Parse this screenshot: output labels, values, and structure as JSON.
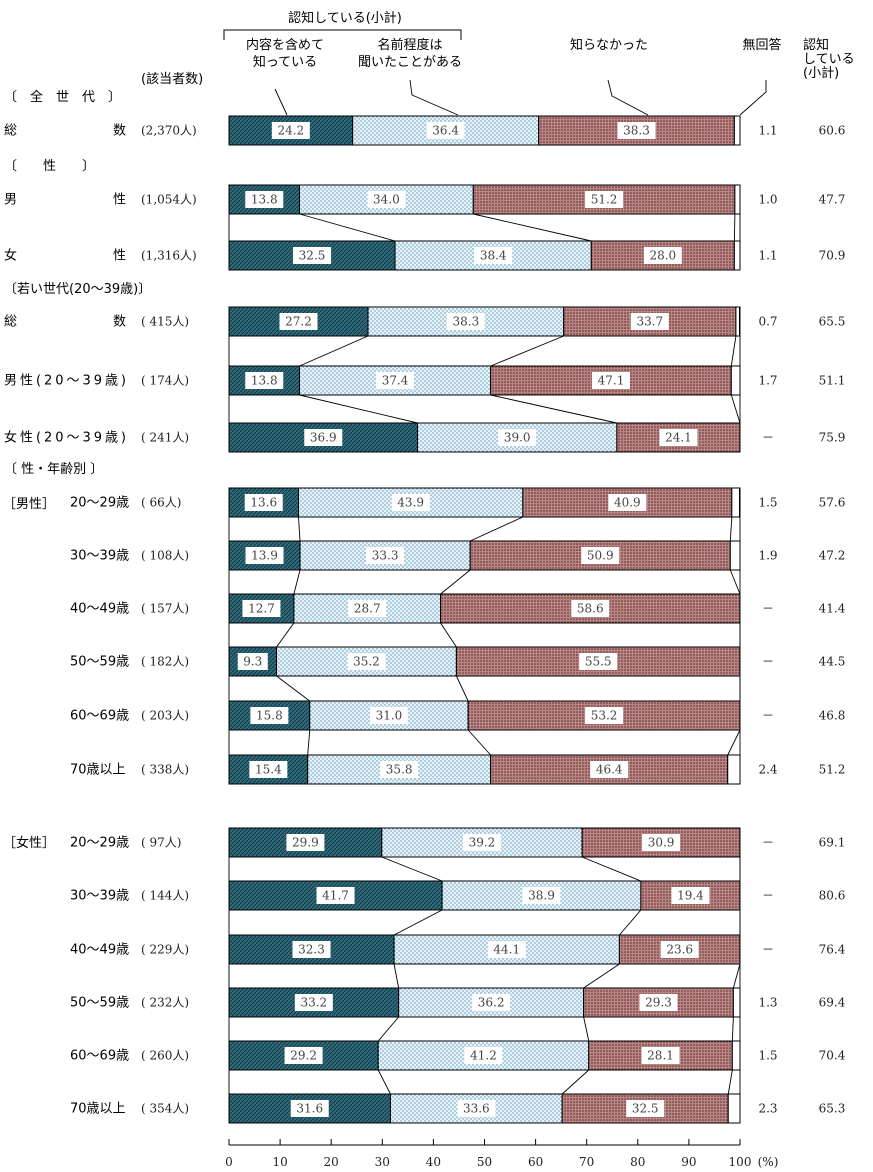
{
  "chart_data": {
    "type": "stacked-bar",
    "unit_label": "(%)",
    "x_ticks": [
      "0",
      "10",
      "20",
      "30",
      "40",
      "50",
      "60",
      "70",
      "80",
      "90",
      "100"
    ],
    "xlim": [
      0,
      100
    ],
    "legend": {
      "group_label": "認知している(小計)",
      "series": [
        {
          "name": "内容を含めて\n知っている",
          "color": "#2f6a7a"
        },
        {
          "name": "名前程度は\n聞いたことがある",
          "color": "#d9ecf5"
        },
        {
          "name": "知らなかった",
          "color": "#b07070"
        },
        {
          "name": "無回答",
          "color": "#ffffff"
        }
      ],
      "subtotal_header": "認知\nしている\n(小計)",
      "count_header": "(該当者数)"
    },
    "section_headers": {
      "all": "〔　全　世　代　〕",
      "sex": "〔　　性　　〕",
      "young": "〔若い世代(20～39歳)〕",
      "sexage": "〔 性・年齢別 〕",
      "male": "［男性］",
      "female": "［女性］"
    },
    "rows": [
      {
        "label": "総　　　　数",
        "count": "(2,370人)",
        "values": [
          24.2,
          36.4,
          38.3,
          1.1
        ],
        "labels": [
          "24.2",
          "36.4",
          "38.3",
          "1.1"
        ],
        "subtotal": "60.6"
      },
      {
        "label": "男　　　　性",
        "count": "(1,054人)",
        "values": [
          13.8,
          34.0,
          51.2,
          1.0
        ],
        "labels": [
          "13.8",
          "34.0",
          "51.2",
          "1.0"
        ],
        "subtotal": "47.7"
      },
      {
        "label": "女　　　　性",
        "count": "(1,316人)",
        "values": [
          32.5,
          38.4,
          28.0,
          1.1
        ],
        "labels": [
          "32.5",
          "38.4",
          "28.0",
          "1.1"
        ],
        "subtotal": "70.9"
      },
      {
        "label": "総　　　　数",
        "count": "( 415人)",
        "values": [
          27.2,
          38.3,
          33.7,
          0.7
        ],
        "labels": [
          "27.2",
          "38.3",
          "33.7",
          "0.7"
        ],
        "subtotal": "65.5"
      },
      {
        "label": "男性(20～39歳)",
        "count": "( 174人)",
        "values": [
          13.8,
          37.4,
          47.1,
          1.7
        ],
        "labels": [
          "13.8",
          "37.4",
          "47.1",
          "1.7"
        ],
        "subtotal": "51.1"
      },
      {
        "label": "女性(20～39歳)",
        "count": "( 241人)",
        "values": [
          36.9,
          39.0,
          24.1,
          0
        ],
        "labels": [
          "36.9",
          "39.0",
          "24.1",
          "－"
        ],
        "subtotal": "75.9"
      },
      {
        "label": "20～29歳",
        "count": "(  66人)",
        "values": [
          13.6,
          43.9,
          40.9,
          1.5
        ],
        "labels": [
          "13.6",
          "43.9",
          "40.9",
          "1.5"
        ],
        "subtotal": "57.6"
      },
      {
        "label": "30～39歳",
        "count": "( 108人)",
        "values": [
          13.9,
          33.3,
          50.9,
          1.9
        ],
        "labels": [
          "13.9",
          "33.3",
          "50.9",
          "1.9"
        ],
        "subtotal": "47.2"
      },
      {
        "label": "40～49歳",
        "count": "( 157人)",
        "values": [
          12.7,
          28.7,
          58.6,
          0
        ],
        "labels": [
          "12.7",
          "28.7",
          "58.6",
          "－"
        ],
        "subtotal": "41.4"
      },
      {
        "label": "50～59歳",
        "count": "( 182人)",
        "values": [
          9.3,
          35.2,
          55.5,
          0
        ],
        "labels": [
          "9.3",
          "35.2",
          "55.5",
          "－"
        ],
        "subtotal": "44.5"
      },
      {
        "label": "60～69歳",
        "count": "( 203人)",
        "values": [
          15.8,
          31.0,
          53.2,
          0
        ],
        "labels": [
          "15.8",
          "31.0",
          "53.2",
          "－"
        ],
        "subtotal": "46.8"
      },
      {
        "label": "70歳以上",
        "count": "( 338人)",
        "values": [
          15.4,
          35.8,
          46.4,
          2.4
        ],
        "labels": [
          "15.4",
          "35.8",
          "46.4",
          "2.4"
        ],
        "subtotal": "51.2"
      },
      {
        "label": "20～29歳",
        "count": "(  97人)",
        "values": [
          29.9,
          39.2,
          30.9,
          0
        ],
        "labels": [
          "29.9",
          "39.2",
          "30.9",
          "－"
        ],
        "subtotal": "69.1"
      },
      {
        "label": "30～39歳",
        "count": "( 144人)",
        "values": [
          41.7,
          38.9,
          19.4,
          0
        ],
        "labels": [
          "41.7",
          "38.9",
          "19.4",
          "－"
        ],
        "subtotal": "80.6"
      },
      {
        "label": "40～49歳",
        "count": "( 229人)",
        "values": [
          32.3,
          44.1,
          23.6,
          0
        ],
        "labels": [
          "32.3",
          "44.1",
          "23.6",
          "－"
        ],
        "subtotal": "76.4"
      },
      {
        "label": "50～59歳",
        "count": "( 232人)",
        "values": [
          33.2,
          36.2,
          29.3,
          1.3
        ],
        "labels": [
          "33.2",
          "36.2",
          "29.3",
          "1.3"
        ],
        "subtotal": "69.4"
      },
      {
        "label": "60～69歳",
        "count": "( 260人)",
        "values": [
          29.2,
          41.2,
          28.1,
          1.5
        ],
        "labels": [
          "29.2",
          "41.2",
          "28.1",
          "1.5"
        ],
        "subtotal": "70.4"
      },
      {
        "label": "70歳以上",
        "count": "( 354人)",
        "values": [
          31.6,
          33.6,
          32.5,
          2.3
        ],
        "labels": [
          "31.6",
          "33.6",
          "32.5",
          "2.3"
        ],
        "subtotal": "65.3"
      }
    ]
  }
}
